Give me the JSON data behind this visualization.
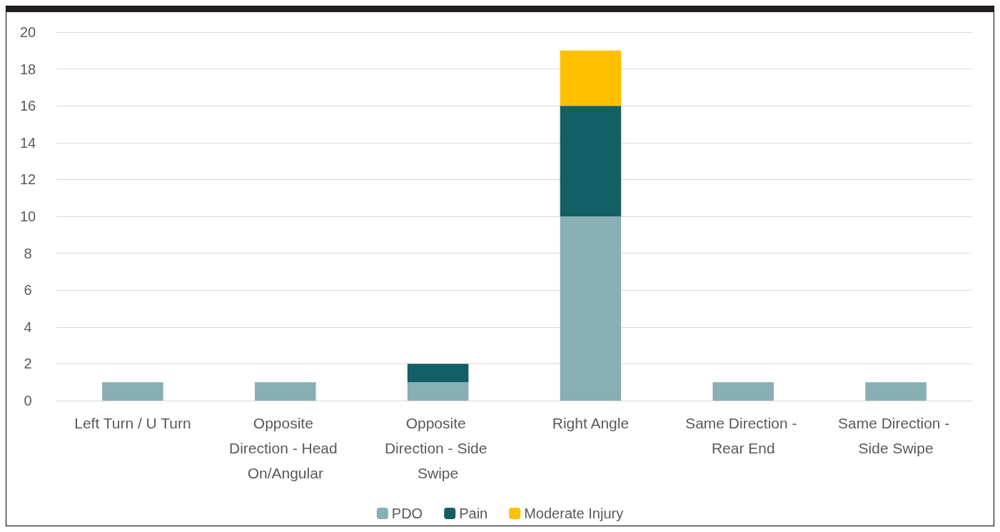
{
  "chart_data": {
    "type": "bar",
    "stacked": true,
    "categories": [
      "Left Turn / U Turn",
      "Opposite Direction - Head On/Angular",
      "Opposite Direction - Side Swipe",
      "Right Angle",
      "Same Direction - Rear End",
      "Same Direction - Side Swipe"
    ],
    "series": [
      {
        "name": "PDO",
        "color": "#88afb4",
        "values": [
          1,
          1,
          1,
          10,
          1,
          1
        ]
      },
      {
        "name": "Pain",
        "color": "#135f66",
        "values": [
          0,
          0,
          1,
          6,
          0,
          0
        ]
      },
      {
        "name": "Moderate Injury",
        "color": "#ffc000",
        "values": [
          0,
          0,
          0,
          3,
          0,
          0
        ]
      }
    ],
    "ylim": [
      0,
      20
    ],
    "yticks": [
      0,
      2,
      4,
      6,
      8,
      10,
      12,
      14,
      16,
      18,
      20
    ],
    "grid": "y",
    "legend": "bottom"
  }
}
